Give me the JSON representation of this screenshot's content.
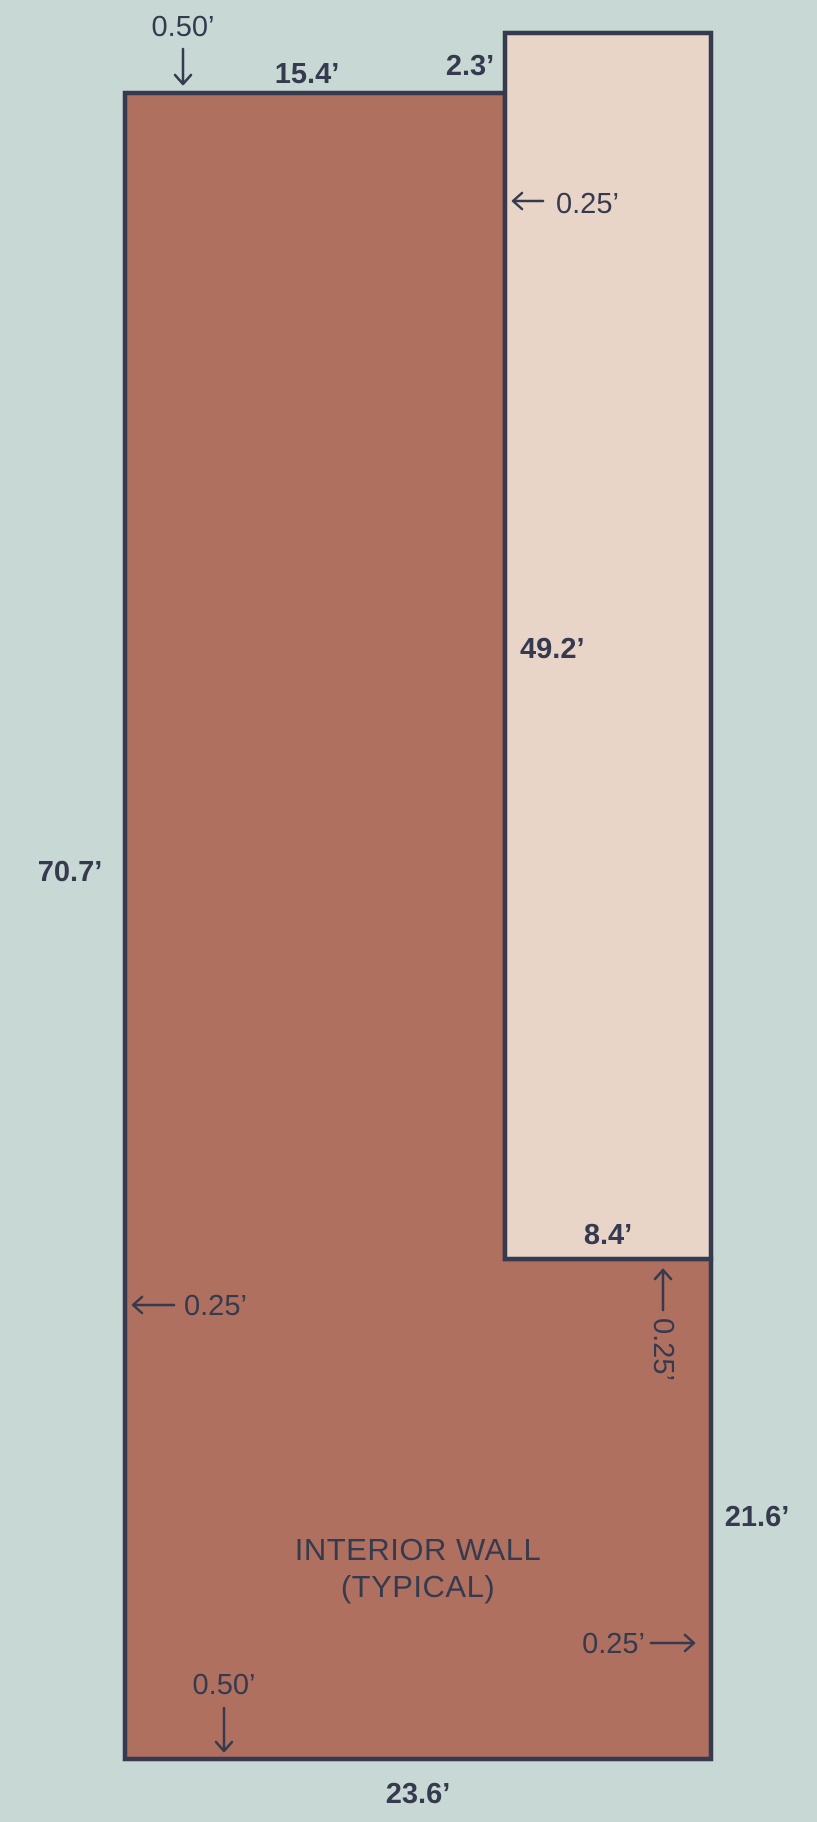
{
  "diagram": {
    "colors": {
      "background": "#c8d9d5",
      "main_room": "#b0705f",
      "side_room": "#e8d5c8",
      "line": "#363a4f"
    },
    "dimensions": {
      "top_width": "15.4’",
      "notch_width": "2.3’",
      "left_height": "70.7’",
      "side_room_height": "49.2’",
      "side_room_width": "8.4’",
      "lower_right_height": "21.6’",
      "bottom_width": "23.6’"
    },
    "wall_thickness": {
      "exterior_top": "0.50’",
      "exterior_bottom": "0.50’",
      "side_room_wall": "0.25’",
      "left_wall": "0.25’",
      "under_side_room": "0.25’",
      "right_wall": "0.25’"
    },
    "note": {
      "line1": "INTERIOR WALL",
      "line2": "(TYPICAL)"
    }
  }
}
